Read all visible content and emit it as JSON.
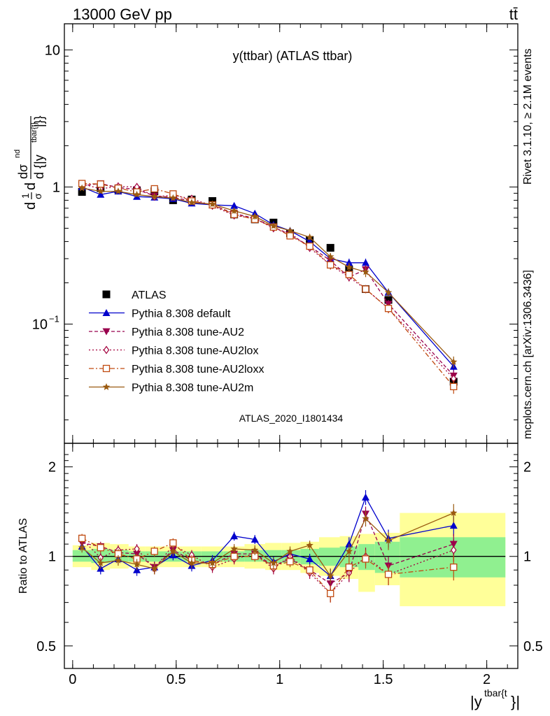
{
  "header": {
    "left": "13000 GeV pp",
    "right": "tt̄"
  },
  "side_labels": {
    "rivet": "Rivet 3.1.10, ≥ 2.1M events",
    "mcplots": "mcplots.cern.ch [arXiv:1306.3436]"
  },
  "watermark": "ATLAS_2020_I1801434",
  "colors": {
    "atlas": "#000000",
    "default": "#0000cc",
    "au2": "#99004d",
    "au2lox": "#a3003d",
    "au2loxx": "#c04a10",
    "au2m": "#9a5a10",
    "band_inner": "#90f090",
    "band_outer": "#ffff99"
  },
  "chart_data": [
    {
      "type": "scatter",
      "panel": "main",
      "title": "y(ttbar) (ATLAS ttbar)",
      "ylabel": "dσ/d{|y^{tbar{t}}|} normalised",
      "ylabel_parts": {
        "pre": "d",
        "frac1_num": "1",
        "frac1_den": "σ",
        "d": "d",
        "num": "dσ",
        "num_sup": "nd",
        "den": "d {|y",
        "den_sup": "tbar{t}",
        "den_end": "|}}"
      },
      "yscale": "log",
      "ylim": [
        0.0135,
        15.5
      ],
      "xlim": [
        -0.04,
        2.15
      ],
      "yticks": [
        {
          "value": 0.1,
          "base": "10",
          "exp": "−1"
        },
        {
          "value": 1,
          "base": "1",
          "exp": ""
        },
        {
          "value": 10,
          "base": "10",
          "exp": ""
        }
      ],
      "x": [
        0.045,
        0.135,
        0.22,
        0.31,
        0.395,
        0.485,
        0.575,
        0.675,
        0.78,
        0.88,
        0.97,
        1.05,
        1.145,
        1.245,
        1.335,
        1.415,
        1.525,
        1.84
      ],
      "series": [
        {
          "name": "ATLAS",
          "key": "atlas",
          "marker": "square-filled",
          "dash": "none",
          "values": [
            0.92,
            0.98,
            0.96,
            0.94,
            0.93,
            0.8,
            0.81,
            0.79,
            0.63,
            0.58,
            0.55,
            0.46,
            0.41,
            0.36,
            0.25,
            0.18,
            0.15,
            0.038
          ],
          "errors": [
            0.03,
            0.03,
            0.03,
            0.03,
            0.03,
            0.03,
            0.03,
            0.03,
            0.02,
            0.02,
            0.02,
            0.02,
            0.015,
            0.015,
            0.012,
            0.01,
            0.008,
            0.003
          ]
        },
        {
          "name": "Pythia 8.308 default",
          "key": "default",
          "marker": "triangle-up-filled",
          "dash": "none",
          "values": [
            1.0,
            0.88,
            0.93,
            0.85,
            0.84,
            0.82,
            0.76,
            0.74,
            0.73,
            0.64,
            0.53,
            0.48,
            0.4,
            0.3,
            0.28,
            0.28,
            0.17,
            0.049
          ],
          "errors": [
            0.03,
            0.03,
            0.03,
            0.03,
            0.03,
            0.03,
            0.03,
            0.03,
            0.03,
            0.03,
            0.02,
            0.02,
            0.02,
            0.02,
            0.02,
            0.02,
            0.01,
            0.004
          ]
        },
        {
          "name": "Pythia 8.308 tune-AU2",
          "key": "au2",
          "marker": "triangle-down-filled",
          "dash": "5,3",
          "values": [
            1.02,
            1.06,
            0.99,
            0.96,
            0.86,
            0.84,
            0.79,
            0.74,
            0.64,
            0.59,
            0.51,
            0.45,
            0.37,
            0.29,
            0.22,
            0.25,
            0.14,
            0.042
          ],
          "errors": [
            0.03,
            0.03,
            0.03,
            0.03,
            0.03,
            0.03,
            0.03,
            0.03,
            0.03,
            0.03,
            0.02,
            0.02,
            0.02,
            0.02,
            0.015,
            0.02,
            0.01,
            0.004
          ]
        },
        {
          "name": "Pythia 8.308 tune-AU2lox",
          "key": "au2lox",
          "marker": "diamond-open",
          "dash": "2,3",
          "values": [
            1.05,
            0.97,
            1.01,
            1.0,
            0.85,
            0.87,
            0.82,
            0.73,
            0.62,
            0.59,
            0.5,
            0.46,
            0.36,
            0.27,
            0.22,
            0.18,
            0.13,
            0.04
          ],
          "errors": [
            0.03,
            0.03,
            0.03,
            0.03,
            0.03,
            0.03,
            0.03,
            0.03,
            0.03,
            0.03,
            0.02,
            0.02,
            0.02,
            0.02,
            0.015,
            0.012,
            0.01,
            0.004
          ]
        },
        {
          "name": "Pythia 8.308 tune-AU2loxx",
          "key": "au2loxx",
          "marker": "square-open",
          "dash": "7,3,2,3",
          "values": [
            1.06,
            1.05,
            0.98,
            0.92,
            0.97,
            0.89,
            0.79,
            0.74,
            0.63,
            0.58,
            0.51,
            0.44,
            0.37,
            0.27,
            0.23,
            0.18,
            0.13,
            0.035
          ],
          "errors": [
            0.03,
            0.03,
            0.03,
            0.03,
            0.03,
            0.03,
            0.03,
            0.03,
            0.03,
            0.03,
            0.02,
            0.02,
            0.02,
            0.02,
            0.015,
            0.012,
            0.01,
            0.004
          ]
        },
        {
          "name": "Pythia 8.308 tune-AU2m",
          "key": "au2m",
          "marker": "star-filled",
          "dash": "none",
          "values": [
            0.98,
            0.93,
            0.93,
            0.88,
            0.85,
            0.83,
            0.77,
            0.75,
            0.67,
            0.61,
            0.52,
            0.48,
            0.43,
            0.31,
            0.26,
            0.24,
            0.17,
            0.053
          ],
          "errors": [
            0.03,
            0.03,
            0.03,
            0.03,
            0.03,
            0.03,
            0.03,
            0.03,
            0.03,
            0.03,
            0.02,
            0.02,
            0.02,
            0.02,
            0.02,
            0.02,
            0.012,
            0.005
          ]
        }
      ]
    },
    {
      "type": "scatter",
      "panel": "ratio",
      "ylabel": "Ratio to ATLAS",
      "xlabel_base": "|y",
      "xlabel_sup": "tbar{t",
      "xlabel_end": "}|",
      "yscale": "log",
      "ylim": [
        0.42,
        2.4
      ],
      "xlim": [
        -0.04,
        2.15
      ],
      "xticks": [
        {
          "value": 0,
          "label": "0"
        },
        {
          "value": 0.5,
          "label": "0.5"
        },
        {
          "value": 1,
          "label": "1"
        },
        {
          "value": 1.5,
          "label": "1.5"
        },
        {
          "value": 2,
          "label": "2"
        }
      ],
      "yticks": [
        {
          "value": 0.5,
          "label": "0.5"
        },
        {
          "value": 1,
          "label": "1"
        },
        {
          "value": 2,
          "label": "2"
        }
      ],
      "bands": [
        {
          "x": [
            0.0,
            0.09
          ],
          "inner": [
            0.96,
            1.05
          ],
          "outer": [
            0.92,
            1.09
          ]
        },
        {
          "x": [
            0.09,
            0.18
          ],
          "inner": [
            0.95,
            1.06
          ],
          "outer": [
            0.9,
            1.11
          ]
        },
        {
          "x": [
            0.18,
            0.27
          ],
          "inner": [
            0.96,
            1.05
          ],
          "outer": [
            0.91,
            1.1
          ]
        },
        {
          "x": [
            0.27,
            0.35
          ],
          "inner": [
            0.96,
            1.04
          ],
          "outer": [
            0.92,
            1.08
          ]
        },
        {
          "x": [
            0.35,
            0.44
          ],
          "inner": [
            0.96,
            1.04
          ],
          "outer": [
            0.92,
            1.08
          ]
        },
        {
          "x": [
            0.44,
            0.53
          ],
          "inner": [
            0.96,
            1.04
          ],
          "outer": [
            0.92,
            1.08
          ]
        },
        {
          "x": [
            0.53,
            0.62
          ],
          "inner": [
            0.96,
            1.04
          ],
          "outer": [
            0.92,
            1.08
          ]
        },
        {
          "x": [
            0.62,
            0.73
          ],
          "inner": [
            0.96,
            1.04
          ],
          "outer": [
            0.92,
            1.08
          ]
        },
        {
          "x": [
            0.73,
            0.83
          ],
          "inner": [
            0.96,
            1.04
          ],
          "outer": [
            0.92,
            1.08
          ]
        },
        {
          "x": [
            0.83,
            0.93
          ],
          "inner": [
            0.96,
            1.05
          ],
          "outer": [
            0.91,
            1.1
          ]
        },
        {
          "x": [
            0.93,
            1.01
          ],
          "inner": [
            0.95,
            1.05
          ],
          "outer": [
            0.9,
            1.11
          ]
        },
        {
          "x": [
            1.01,
            1.1
          ],
          "inner": [
            0.95,
            1.05
          ],
          "outer": [
            0.9,
            1.11
          ]
        },
        {
          "x": [
            1.1,
            1.19
          ],
          "inner": [
            0.94,
            1.06
          ],
          "outer": [
            0.88,
            1.12
          ]
        },
        {
          "x": [
            1.19,
            1.29
          ],
          "inner": [
            0.93,
            1.07
          ],
          "outer": [
            0.86,
            1.16
          ]
        },
        {
          "x": [
            1.29,
            1.38
          ],
          "inner": [
            0.92,
            1.08
          ],
          "outer": [
            0.84,
            1.17
          ]
        },
        {
          "x": [
            1.38,
            1.46
          ],
          "inner": [
            0.9,
            1.1
          ],
          "outer": [
            0.76,
            1.19
          ]
        },
        {
          "x": [
            1.46,
            1.58
          ],
          "inner": [
            0.88,
            1.12
          ],
          "outer": [
            0.8,
            1.2
          ]
        },
        {
          "x": [
            1.58,
            2.09
          ],
          "inner": [
            0.85,
            1.16
          ],
          "outer": [
            0.68,
            1.4
          ]
        }
      ],
      "series": [
        {
          "key": "default",
          "marker": "triangle-up-filled",
          "dash": "none",
          "values": [
            1.08,
            0.91,
            0.98,
            0.9,
            0.92,
            1.01,
            0.93,
            0.97,
            1.17,
            1.14,
            0.96,
            1.02,
            0.98,
            0.86,
            1.1,
            1.58,
            1.15,
            1.27
          ],
          "errors": [
            0.04,
            0.04,
            0.04,
            0.04,
            0.04,
            0.04,
            0.04,
            0.04,
            0.04,
            0.04,
            0.04,
            0.04,
            0.04,
            0.05,
            0.06,
            0.09,
            0.08,
            0.1
          ]
        },
        {
          "key": "au2",
          "marker": "triangle-down-filled",
          "dash": "5,3",
          "values": [
            1.11,
            1.08,
            1.03,
            1.02,
            0.92,
            1.05,
            0.97,
            0.94,
            1.02,
            1.02,
            0.93,
            0.98,
            0.9,
            0.81,
            0.88,
            1.39,
            0.93,
            1.1
          ],
          "errors": [
            0.04,
            0.04,
            0.04,
            0.04,
            0.04,
            0.04,
            0.04,
            0.04,
            0.04,
            0.04,
            0.04,
            0.04,
            0.04,
            0.05,
            0.06,
            0.08,
            0.07,
            0.09
          ]
        },
        {
          "key": "au2lox",
          "marker": "diamond-open",
          "dash": "2,3",
          "values": [
            1.14,
            0.99,
            1.05,
            1.06,
            0.91,
            1.09,
            1.01,
            0.92,
            0.98,
            1.02,
            0.91,
            1.0,
            0.88,
            0.75,
            0.88,
            1.0,
            0.87,
            1.05
          ],
          "errors": [
            0.04,
            0.04,
            0.04,
            0.04,
            0.04,
            0.04,
            0.04,
            0.04,
            0.04,
            0.04,
            0.04,
            0.04,
            0.04,
            0.05,
            0.06,
            0.07,
            0.07,
            0.09
          ]
        },
        {
          "key": "au2loxx",
          "marker": "square-open",
          "dash": "7,3,2,3",
          "values": [
            1.15,
            1.07,
            1.02,
            0.98,
            1.04,
            1.11,
            0.97,
            0.94,
            1.0,
            1.0,
            0.93,
            0.96,
            0.9,
            0.75,
            0.92,
            0.98,
            0.87,
            0.92
          ],
          "errors": [
            0.04,
            0.04,
            0.04,
            0.04,
            0.04,
            0.04,
            0.04,
            0.04,
            0.04,
            0.04,
            0.04,
            0.04,
            0.04,
            0.05,
            0.06,
            0.07,
            0.07,
            0.09
          ]
        },
        {
          "key": "au2m",
          "marker": "star-filled",
          "dash": "none",
          "values": [
            1.07,
            0.95,
            0.97,
            0.94,
            0.91,
            1.04,
            0.95,
            0.95,
            1.06,
            1.05,
            0.95,
            1.04,
            1.09,
            0.86,
            1.04,
            1.34,
            1.13,
            1.4
          ],
          "errors": [
            0.04,
            0.04,
            0.04,
            0.04,
            0.04,
            0.04,
            0.04,
            0.04,
            0.04,
            0.04,
            0.04,
            0.04,
            0.04,
            0.05,
            0.06,
            0.08,
            0.08,
            0.1
          ]
        }
      ]
    }
  ]
}
